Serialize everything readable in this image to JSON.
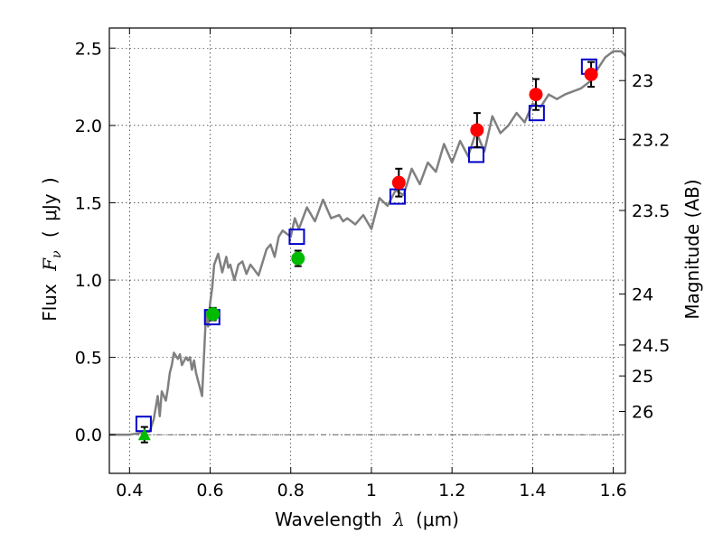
{
  "chart_data": {
    "type": "scatter",
    "xlabel": "Wavelength  λ (μm)",
    "ylabel_left": "Flux  F_ν  ( μJy )",
    "ylabel_left_parts": {
      "word": "Flux",
      "symbol": "F",
      "subscript": "ν",
      "open": "(",
      "unit": "μJy",
      "close": ")"
    },
    "xlabel_parts": {
      "word": "Wavelength",
      "symbol": "λ",
      "unit": "(μm)"
    },
    "ylabel_right": "Magnitude (AB)",
    "xlim": [
      0.35,
      1.63
    ],
    "ylim": [
      -0.25,
      2.63
    ],
    "grid": true,
    "x_ticks": [
      {
        "value": 0.4,
        "label": "0.4"
      },
      {
        "value": 0.6,
        "label": "0.6"
      },
      {
        "value": 0.8,
        "label": "0.8"
      },
      {
        "value": 1.0,
        "label": "1"
      },
      {
        "value": 1.2,
        "label": "1.2"
      },
      {
        "value": 1.4,
        "label": "1.4"
      },
      {
        "value": 1.6,
        "label": "1.6"
      }
    ],
    "y_ticks": [
      {
        "value": 0.0,
        "label": "0.0"
      },
      {
        "value": 0.5,
        "label": "0.5"
      },
      {
        "value": 1.0,
        "label": "1.0"
      },
      {
        "value": 1.5,
        "label": "1.5"
      },
      {
        "value": 2.0,
        "label": "2.0"
      },
      {
        "value": 2.5,
        "label": "2.5"
      }
    ],
    "right_ticks": [
      {
        "label": "23",
        "flux": 2.29
      },
      {
        "label": "23.2",
        "flux": 1.91
      },
      {
        "label": "23.5",
        "flux": 1.45
      },
      {
        "label": "24",
        "flux": 0.91
      },
      {
        "label": "24.5",
        "flux": 0.58
      },
      {
        "label": "25",
        "flux": 0.38
      },
      {
        "label": "26",
        "flux": 0.15
      }
    ],
    "series": [
      {
        "name": "model spectrum",
        "kind": "line",
        "color": "#808080",
        "x": [
          0.35,
          0.4,
          0.45,
          0.46,
          0.47,
          0.475,
          0.48,
          0.49,
          0.495,
          0.5,
          0.505,
          0.51,
          0.52,
          0.525,
          0.53,
          0.54,
          0.545,
          0.55,
          0.555,
          0.56,
          0.565,
          0.57,
          0.575,
          0.58,
          0.59,
          0.595,
          0.6,
          0.605,
          0.61,
          0.62,
          0.63,
          0.64,
          0.645,
          0.65,
          0.66,
          0.67,
          0.68,
          0.69,
          0.7,
          0.72,
          0.74,
          0.75,
          0.76,
          0.77,
          0.78,
          0.8,
          0.81,
          0.82,
          0.84,
          0.86,
          0.88,
          0.9,
          0.92,
          0.93,
          0.94,
          0.95,
          0.96,
          0.98,
          1.0,
          1.02,
          1.04,
          1.06,
          1.08,
          1.1,
          1.12,
          1.14,
          1.16,
          1.18,
          1.2,
          1.22,
          1.24,
          1.26,
          1.28,
          1.3,
          1.32,
          1.34,
          1.36,
          1.38,
          1.4,
          1.42,
          1.44,
          1.46,
          1.48,
          1.5,
          1.52,
          1.54,
          1.56,
          1.58,
          1.6,
          1.62,
          1.63
        ],
        "y": [
          0.0,
          0.0,
          0.02,
          0.1,
          0.25,
          0.12,
          0.28,
          0.22,
          0.3,
          0.4,
          0.45,
          0.53,
          0.49,
          0.52,
          0.45,
          0.5,
          0.48,
          0.5,
          0.42,
          0.48,
          0.4,
          0.35,
          0.3,
          0.25,
          0.8,
          0.7,
          0.85,
          0.95,
          1.1,
          1.17,
          1.05,
          1.15,
          1.08,
          1.1,
          1.0,
          1.1,
          1.12,
          1.04,
          1.1,
          1.03,
          1.2,
          1.23,
          1.15,
          1.28,
          1.32,
          1.28,
          1.4,
          1.33,
          1.47,
          1.38,
          1.52,
          1.4,
          1.42,
          1.38,
          1.4,
          1.38,
          1.36,
          1.42,
          1.33,
          1.53,
          1.48,
          1.58,
          1.55,
          1.72,
          1.62,
          1.76,
          1.7,
          1.88,
          1.76,
          1.9,
          1.8,
          1.96,
          1.83,
          2.06,
          1.95,
          2.0,
          2.08,
          2.02,
          2.14,
          2.12,
          2.2,
          2.17,
          2.2,
          2.22,
          2.24,
          2.28,
          2.36,
          2.44,
          2.48,
          2.48,
          2.45
        ]
      },
      {
        "name": "model photometry",
        "kind": "open-square",
        "color": "#0000cc",
        "x": [
          0.435,
          0.605,
          0.815,
          1.065,
          1.26,
          1.41,
          1.54
        ],
        "y": [
          0.07,
          0.76,
          1.28,
          1.54,
          1.81,
          2.08,
          2.38
        ]
      },
      {
        "name": "observed (red)",
        "kind": "filled-circle",
        "color": "#ff0000",
        "x": [
          1.068,
          1.262,
          1.408,
          1.545
        ],
        "y": [
          1.63,
          1.97,
          2.2,
          2.33
        ],
        "err": [
          0.09,
          0.11,
          0.1,
          0.08
        ]
      },
      {
        "name": "observed (green)",
        "kind": "filled-circle",
        "color": "#00bb00",
        "x": [
          0.607,
          0.818
        ],
        "y": [
          0.78,
          1.14
        ],
        "err": [
          0.04,
          0.05
        ]
      },
      {
        "name": "upper limit",
        "kind": "triangle",
        "color": "#00bb00",
        "x": [
          0.437
        ],
        "y": [
          0.0
        ],
        "err": [
          0.05
        ]
      }
    ]
  }
}
